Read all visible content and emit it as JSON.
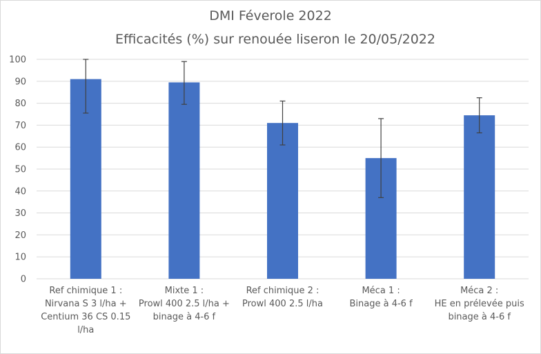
{
  "chart_data": {
    "type": "bar",
    "title": "DMI Féverole 2022",
    "subtitle": "Efficacités (%) sur renouée liseron le 20/05/2022",
    "xlabel": "",
    "ylabel": "",
    "ylim": [
      0,
      100
    ],
    "yticks": [
      0,
      10,
      20,
      30,
      40,
      50,
      60,
      70,
      80,
      90,
      100
    ],
    "grid": "horizontal",
    "legend": "none",
    "categories": [
      [
        "Ref chimique 1 :",
        "Nirvana S 3 l/ha +",
        "Centium 36 CS 0.15",
        "l/ha"
      ],
      [
        "Mixte 1 :",
        "Prowl 400 2.5 l/ha +",
        "binage à 4-6 f"
      ],
      [
        "Ref chimique 2 :",
        "Prowl 400 2.5 l/ha"
      ],
      [
        "Méca 1 :",
        "Binage à 4-6 f"
      ],
      [
        "Méca 2 :",
        "HE en prélevée puis",
        "binage à 4-6 f"
      ]
    ],
    "values": [
      91,
      89.5,
      71,
      55,
      74.5
    ],
    "error_bars": [
      [
        75.5,
        100
      ],
      [
        79.5,
        99
      ],
      [
        61,
        81
      ],
      [
        37,
        73
      ],
      [
        66.5,
        82.5
      ]
    ],
    "colors": {
      "bar": "#4472C4",
      "error_bar": "#404040",
      "grid": "#d9d9d9",
      "text": "#595959"
    }
  }
}
